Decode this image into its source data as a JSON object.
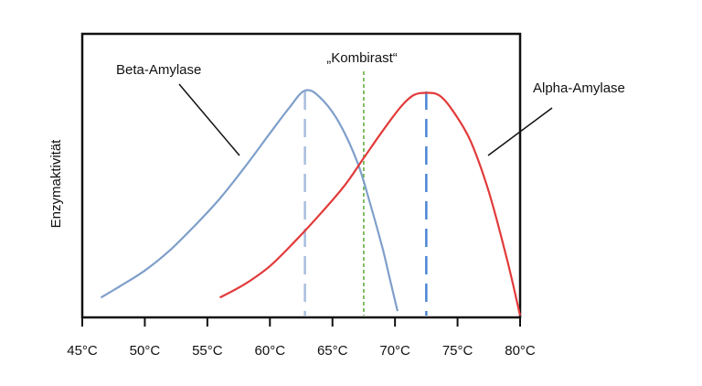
{
  "chart_data": {
    "type": "line",
    "title": "",
    "xlabel": "",
    "ylabel": "Enzymaktivität",
    "xlim": [
      45,
      80
    ],
    "ylim": [
      0,
      100
    ],
    "x_ticks": [
      "45°C",
      "50°C",
      "55°C",
      "60°C",
      "65°C",
      "70°C",
      "75°C",
      "80°C"
    ],
    "x_tick_values": [
      45,
      50,
      55,
      60,
      65,
      70,
      75,
      80
    ],
    "grid": false,
    "series": [
      {
        "name": "Beta-Amylase",
        "color": "#7f9fcb",
        "x": [
          46.5,
          48,
          50,
          52,
          54,
          56,
          58,
          60,
          61.5,
          62.8,
          64,
          65.5,
          67,
          68,
          69,
          69.6,
          70.2
        ],
        "y": [
          8,
          13,
          20,
          29,
          40,
          52,
          66,
          81,
          92,
          100,
          97,
          86,
          68,
          50,
          30,
          16,
          2
        ],
        "peak_x": 62.8
      },
      {
        "name": "Alpha-Amylase",
        "color": "#e23a3a",
        "x": [
          56,
          58,
          60,
          62,
          64,
          66,
          67.5,
          69,
          70.5,
          71.5,
          72.5,
          73.5,
          74.5,
          76,
          77.5,
          79,
          80
        ],
        "y": [
          8,
          14,
          22,
          33,
          45,
          58,
          70,
          82,
          93,
          98,
          99,
          98,
          92,
          78,
          55,
          24,
          0
        ],
        "peak_x": 72.5
      }
    ],
    "annotations": [
      {
        "text": "Beta-Amylase"
      },
      {
        "text": "Alpha-Amylase"
      },
      {
        "text": "„Kombirast“",
        "x": 67.5
      }
    ]
  }
}
